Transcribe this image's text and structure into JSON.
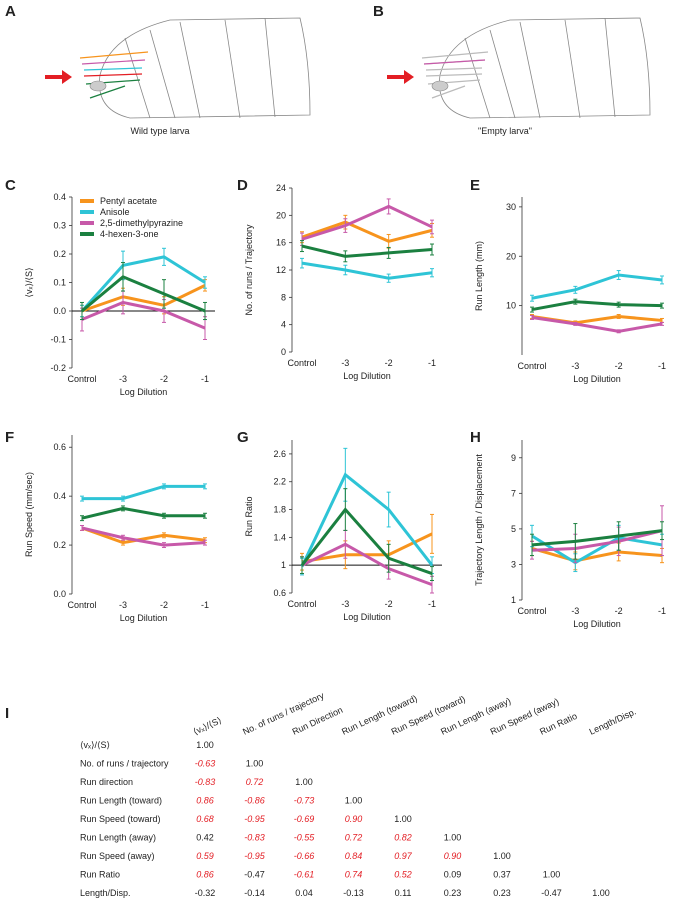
{
  "panels": [
    {
      "letter": "A",
      "caption": "Wild type larva"
    },
    {
      "letter": "B",
      "caption": "\"Empty larva\""
    }
  ],
  "chart_data": [
    {
      "type": "line",
      "letter": "C",
      "ylabel": "⟨vₓ⟩/⟨S⟩",
      "xlabel": "Log Dilution",
      "categories": [
        "Control",
        "-3",
        "-2",
        "-1"
      ],
      "ylim": [
        -0.2,
        0.4
      ],
      "yticks": [
        -0.2,
        -0.1,
        {
          "value": 0,
          "label": "0.0"
        },
        0.1,
        0.2,
        0.3,
        0.4
      ],
      "reference_line": 0,
      "legend": "upper left",
      "series": [
        {
          "name": "Pentyl acetate",
          "color": "#f7941d",
          "values": [
            0,
            0.05,
            0.02,
            0.09
          ],
          "errors": [
            0.02,
            0.03,
            0.03,
            0.02
          ]
        },
        {
          "name": "Anisole",
          "color": "#2ec4d6",
          "values": [
            0,
            0.16,
            0.19,
            0.1
          ],
          "errors": [
            0.02,
            0.05,
            0.03,
            0.02
          ]
        },
        {
          "name": "2,5-dimethylpyrazine",
          "color": "#c759a9",
          "values": [
            -0.03,
            0.03,
            0,
            -0.06
          ],
          "errors": [
            0.04,
            0.04,
            0.04,
            0.04
          ]
        },
        {
          "name": "4-hexen-3-one",
          "color": "#1b8040",
          "values": [
            0,
            0.12,
            0.06,
            0
          ],
          "errors": [
            0.03,
            0.05,
            0.05,
            0.03
          ]
        }
      ]
    },
    {
      "type": "line",
      "letter": "D",
      "ylabel": "No. of runs / Trajectory",
      "xlabel": "Log Dilution",
      "categories": [
        "Control",
        "-3",
        "-2",
        "-1"
      ],
      "ylim": [
        0,
        24
      ],
      "yticks": [
        0,
        4,
        8,
        12,
        16,
        20,
        24
      ],
      "series": [
        {
          "color": "#f7941d",
          "values": [
            16.8,
            19,
            16.2,
            17.8
          ],
          "errors": [
            0.8,
            1,
            1,
            1
          ]
        },
        {
          "color": "#2ec4d6",
          "values": [
            13,
            12,
            10.8,
            11.6
          ],
          "errors": [
            0.7,
            0.7,
            0.6,
            0.6
          ]
        },
        {
          "color": "#c759a9",
          "values": [
            16.5,
            18.5,
            21.3,
            18.3
          ],
          "errors": [
            0.9,
            1,
            1.1,
            1
          ]
        },
        {
          "color": "#1b8040",
          "values": [
            15.5,
            14,
            14.5,
            15
          ],
          "errors": [
            0.8,
            0.8,
            0.8,
            0.8
          ]
        }
      ]
    },
    {
      "type": "line",
      "letter": "E",
      "ylabel": "Run Length (mm)",
      "xlabel": "Log Dilution",
      "categories": [
        "Control",
        "-3",
        "-2",
        "-1"
      ],
      "ylim": [
        0,
        32
      ],
      "yticks": [
        10,
        20,
        30
      ],
      "series": [
        {
          "color": "#f7941d",
          "values": [
            7.8,
            6.5,
            7.8,
            7
          ],
          "errors": [
            0.4,
            0.4,
            0.4,
            0.4
          ]
        },
        {
          "color": "#2ec4d6",
          "values": [
            11.5,
            13.2,
            16.2,
            15.2
          ],
          "errors": [
            0.6,
            0.7,
            0.9,
            0.8
          ]
        },
        {
          "color": "#c759a9",
          "values": [
            7.6,
            6.3,
            4.8,
            6.3
          ],
          "errors": [
            0.4,
            0.3,
            0.3,
            0.3
          ]
        },
        {
          "color": "#1b8040",
          "values": [
            9.2,
            10.8,
            10.2,
            10
          ],
          "errors": [
            0.5,
            0.5,
            0.5,
            0.5
          ]
        }
      ]
    },
    {
      "type": "line",
      "letter": "F",
      "ylabel": "Run Speed (mm/sec)",
      "xlabel": "Log Dilution",
      "categories": [
        "Control",
        "-3",
        "-2",
        "-1"
      ],
      "ylim": [
        0,
        0.65
      ],
      "yticks": [
        {
          "value": 0,
          "label": "0.0"
        },
        0.2,
        0.4,
        0.6
      ],
      "series": [
        {
          "color": "#f7941d",
          "values": [
            0.27,
            0.21,
            0.24,
            0.22
          ],
          "errors": [
            0.01,
            0.01,
            0.01,
            0.01
          ]
        },
        {
          "color": "#2ec4d6",
          "values": [
            0.39,
            0.39,
            0.44,
            0.44
          ],
          "errors": [
            0.01,
            0.01,
            0.01,
            0.01
          ]
        },
        {
          "color": "#c759a9",
          "values": [
            0.27,
            0.23,
            0.2,
            0.21
          ],
          "errors": [
            0.01,
            0.01,
            0.01,
            0.01
          ]
        },
        {
          "color": "#1b8040",
          "values": [
            0.31,
            0.35,
            0.32,
            0.32
          ],
          "errors": [
            0.01,
            0.01,
            0.01,
            0.01
          ]
        }
      ]
    },
    {
      "type": "line",
      "letter": "G",
      "ylabel": "Run Ratio",
      "xlabel": "Log Dilution",
      "categories": [
        "Control",
        "-3",
        "-2",
        "-1"
      ],
      "ylim": [
        0.6,
        2.8
      ],
      "yticks": [
        0.6,
        1,
        1.4,
        1.8,
        2.2,
        2.6
      ],
      "reference_line": 1,
      "series": [
        {
          "color": "#f7941d",
          "values": [
            1.05,
            1.15,
            1.15,
            1.45
          ],
          "errors": [
            0.12,
            0.2,
            0.2,
            0.28
          ]
        },
        {
          "color": "#2ec4d6",
          "values": [
            0.98,
            2.3,
            1.8,
            1
          ],
          "errors": [
            0.12,
            0.38,
            0.25,
            0.12
          ]
        },
        {
          "color": "#c759a9",
          "values": [
            1,
            1.3,
            0.95,
            0.72
          ],
          "errors": [
            0.12,
            0.2,
            0.15,
            0.12
          ]
        },
        {
          "color": "#1b8040",
          "values": [
            1,
            1.8,
            1.1,
            0.88
          ],
          "errors": [
            0.12,
            0.3,
            0.2,
            0.1
          ]
        }
      ]
    },
    {
      "type": "line",
      "letter": "H",
      "ylabel": "Trajectory Length / Displacement",
      "xlabel": "Log Dilution",
      "categories": [
        "Control",
        "-3",
        "-2",
        "-1"
      ],
      "ylim": [
        1,
        10
      ],
      "yticks": [
        1,
        3,
        5,
        7,
        9
      ],
      "series": [
        {
          "color": "#f7941d",
          "values": [
            3.9,
            3.2,
            3.7,
            3.5
          ],
          "errors": [
            0.4,
            0.5,
            0.5,
            0.4
          ]
        },
        {
          "color": "#2ec4d6",
          "values": [
            4.6,
            3.1,
            4.5,
            4.1
          ],
          "errors": [
            0.6,
            0.5,
            0.7,
            0.6
          ]
        },
        {
          "color": "#c759a9",
          "values": [
            3.8,
            3.9,
            4.3,
            4.9
          ],
          "errors": [
            0.5,
            0.8,
            0.8,
            1.4
          ]
        },
        {
          "color": "#1b8040",
          "values": [
            4.1,
            4.3,
            4.6,
            4.9
          ],
          "errors": [
            0.6,
            1,
            0.8,
            0.5
          ]
        }
      ]
    }
  ],
  "table": {
    "letter": "I",
    "highlight_color": "#e31e24",
    "columns": [
      "⟨vₓ⟩/⟨S⟩",
      "No. of runs / trajectory",
      "Run Direction",
      "Run Length (toward)",
      "Run Speed (toward)",
      "Run Length (away)",
      "Run Speed (away)",
      "Run Ratio",
      "Length/Disp."
    ],
    "rows": [
      {
        "label": "⟨vₓ⟩/⟨S⟩",
        "cells": [
          "1.00"
        ],
        "red": [
          false
        ]
      },
      {
        "label": "No. of runs / trajectory",
        "cells": [
          "-0.63",
          "1.00"
        ],
        "red": [
          true,
          false
        ]
      },
      {
        "label": "Run direction",
        "cells": [
          "-0.83",
          "0.72",
          "1.00"
        ],
        "red": [
          true,
          true,
          false
        ]
      },
      {
        "label": "Run Length (toward)",
        "cells": [
          "0.86",
          "-0.86",
          "-0.73",
          "1.00"
        ],
        "red": [
          true,
          true,
          true,
          false
        ]
      },
      {
        "label": "Run Speed (toward)",
        "cells": [
          "0.68",
          "-0.95",
          "-0.69",
          "0.90",
          "1.00"
        ],
        "red": [
          true,
          true,
          true,
          true,
          false
        ]
      },
      {
        "label": "Run Length (away)",
        "cells": [
          "0.42",
          "-0.83",
          "-0.55",
          "0.72",
          "0.82",
          "1.00"
        ],
        "red": [
          false,
          true,
          true,
          true,
          true,
          false
        ]
      },
      {
        "label": "Run Speed (away)",
        "cells": [
          "0.59",
          "-0.95",
          "-0.66",
          "0.84",
          "0.97",
          "0.90",
          "1.00"
        ],
        "red": [
          true,
          true,
          true,
          true,
          true,
          true,
          false
        ]
      },
      {
        "label": "Run Ratio",
        "cells": [
          "0.86",
          "-0.47",
          "-0.61",
          "0.74",
          "0.52",
          "0.09",
          "0.37",
          "1.00"
        ],
        "red": [
          true,
          false,
          true,
          true,
          true,
          false,
          false,
          false
        ]
      },
      {
        "label": "Length/Disp.",
        "cells": [
          "-0.32",
          "-0.14",
          "0.04",
          "-0.13",
          "0.11",
          "0.23",
          "0.23",
          "-0.47",
          "1.00"
        ],
        "red": [
          false,
          false,
          false,
          false,
          false,
          false,
          false,
          false,
          false
        ]
      }
    ]
  }
}
